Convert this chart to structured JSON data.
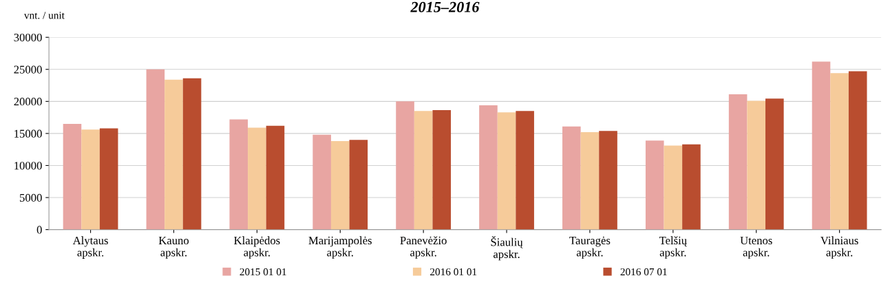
{
  "chart_data": {
    "type": "bar",
    "title": "2015–2016",
    "ylabel": "vnt. / unit",
    "categories": [
      "Alytaus\napskr.",
      "Kauno\napskr.",
      "Klaipėdos\napskr.",
      "Marijampolės\napskr.",
      "Panevėžio\napskr.",
      "Šiaulių\napskr.",
      "Tauragės\napskr.",
      "Telšių\napskr.",
      "Utenos\napskr.",
      "Vilniaus\napskr."
    ],
    "series": [
      {
        "name": "2015 01 01",
        "color": "#e8a5a2",
        "values": [
          16500,
          25000,
          17200,
          14800,
          20000,
          19400,
          16100,
          13900,
          21100,
          26200
        ]
      },
      {
        "name": "2016 01 01",
        "color": "#f6cb9a",
        "values": [
          15600,
          23400,
          15900,
          13800,
          18500,
          18300,
          15200,
          13100,
          20100,
          24400
        ]
      },
      {
        "name": "2016 07 01",
        "color": "#b94d2f",
        "values": [
          15800,
          23600,
          16200,
          14000,
          18650,
          18500,
          15400,
          13300,
          20450,
          24700
        ]
      }
    ],
    "ylim": [
      0,
      30000
    ],
    "yticks": [
      0,
      5000,
      10000,
      15000,
      20000,
      25000,
      30000
    ],
    "grid": "y",
    "legend": "bottom"
  }
}
